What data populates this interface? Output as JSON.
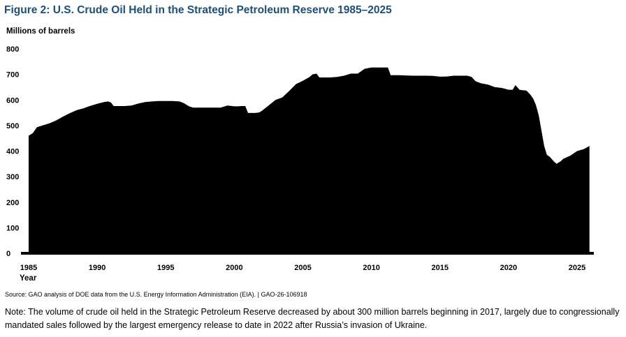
{
  "title": "Figure 2: U.S. Crude Oil Held in the Strategic Petroleum Reserve 1985–2025",
  "source": "Source: GAO analysis of DOE data from the U.S. Energy Information Administration (EIA).  |  GAO-26-106918",
  "note": "Note: The volume of crude oil held in the Strategic Petroleum Reserve decreased by about 300 million barrels beginning in 2017, largely due to congressionally mandated sales followed by the largest emergency release to date in 2022 after Russia’s invasion of Ukraine.",
  "chart_data": {
    "type": "area",
    "ylabel": "Millions of barrels",
    "xlabel": "Year",
    "xlim": [
      1985,
      2026
    ],
    "ylim": [
      0,
      800
    ],
    "x_ticks": [
      1985,
      1990,
      1995,
      2000,
      2005,
      2010,
      2015,
      2020,
      2025
    ],
    "y_ticks": [
      0,
      100,
      200,
      300,
      400,
      500,
      600,
      700,
      800
    ],
    "fill_color": "#000000",
    "grid": false,
    "legend": "none",
    "x": [
      1985.0,
      1985.3,
      1985.6,
      1986.0,
      1986.5,
      1987.0,
      1987.5,
      1988.0,
      1988.5,
      1989.0,
      1989.5,
      1990.0,
      1990.5,
      1990.8,
      1991.0,
      1991.2,
      1992.0,
      1992.5,
      1993.0,
      1993.5,
      1994.0,
      1994.5,
      1995.0,
      1995.5,
      1996.0,
      1996.3,
      1996.7,
      1997.0,
      1998.0,
      1999.0,
      1999.5,
      2000.0,
      2000.3,
      2000.5,
      2000.8,
      2001.0,
      2001.5,
      2001.8,
      2002.0,
      2002.5,
      2003.0,
      2003.5,
      2004.0,
      2004.5,
      2005.0,
      2005.5,
      2005.7,
      2006.0,
      2006.2,
      2007.0,
      2007.5,
      2008.0,
      2008.5,
      2009.0,
      2009.5,
      2010.0,
      2011.0,
      2011.2,
      2011.4,
      2012.0,
      2013.0,
      2014.0,
      2014.5,
      2015.0,
      2015.5,
      2016.0,
      2017.0,
      2017.3,
      2017.6,
      2018.0,
      2018.5,
      2019.0,
      2019.5,
      2020.0,
      2020.3,
      2020.5,
      2020.8,
      2021.0,
      2021.3,
      2021.6,
      2021.8,
      2022.0,
      2022.2,
      2022.4,
      2022.6,
      2022.8,
      2023.0,
      2023.3,
      2023.5,
      2023.8,
      2024.0,
      2024.5,
      2025.0,
      2025.5,
      2025.9
    ],
    "values": [
      460,
      470,
      493,
      500,
      508,
      520,
      535,
      548,
      560,
      567,
      577,
      585,
      592,
      594,
      590,
      576,
      576,
      578,
      586,
      592,
      594,
      596,
      596,
      596,
      594,
      588,
      575,
      570,
      570,
      570,
      578,
      575,
      575,
      576,
      576,
      549,
      549,
      551,
      557,
      578,
      600,
      610,
      635,
      662,
      675,
      690,
      700,
      703,
      688,
      688,
      690,
      695,
      703,
      703,
      722,
      727,
      727,
      727,
      697,
      697,
      695,
      695,
      694,
      691,
      692,
      695,
      695,
      690,
      673,
      665,
      660,
      650,
      647,
      640,
      640,
      658,
      640,
      638,
      637,
      620,
      605,
      580,
      540,
      480,
      420,
      385,
      378,
      360,
      350,
      360,
      370,
      382,
      400,
      408,
      420
    ]
  }
}
